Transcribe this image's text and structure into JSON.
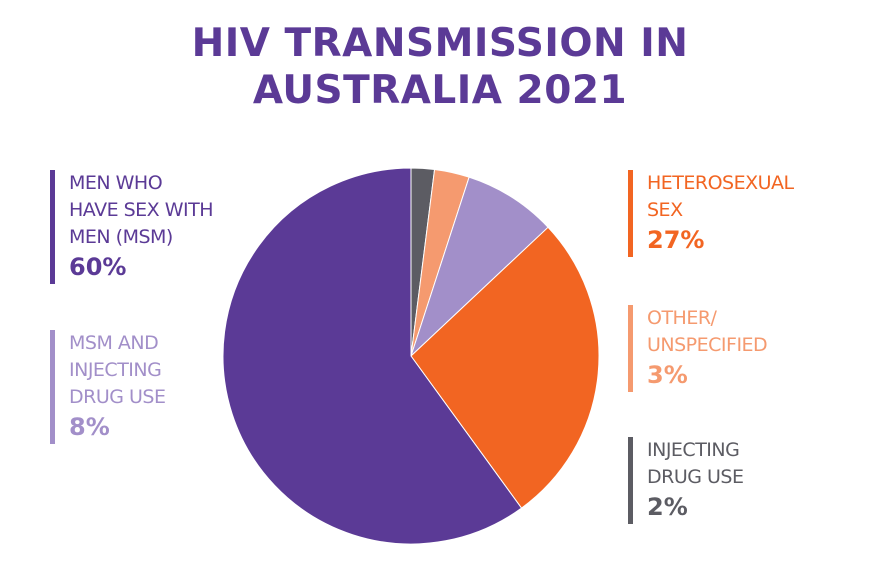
{
  "chart_data": {
    "type": "pie",
    "title_lines": [
      "HIV TRANSMISSION IN",
      "AUSTRALIA 2021"
    ],
    "slices": [
      {
        "label_lines": [
          "INJECTING",
          "DRUG USE"
        ],
        "value": 2,
        "value_label": "2%",
        "color": "#5c5c63"
      },
      {
        "label_lines": [
          "OTHER/",
          "UNSPECIFIED"
        ],
        "value": 3,
        "value_label": "3%",
        "color": "#f59a6f"
      },
      {
        "label_lines": [
          "MSM AND",
          "INJECTING",
          "DRUG USE"
        ],
        "value": 8,
        "value_label": "8%",
        "color": "#a28fc9"
      },
      {
        "label_lines": [
          "HETEROSEXUAL",
          "SEX"
        ],
        "value": 27,
        "value_label": "27%",
        "color": "#f26522"
      },
      {
        "label_lines": [
          "MEN WHO",
          "HAVE SEX WITH",
          "MEN (MSM)"
        ],
        "value": 60,
        "value_label": "60%",
        "color": "#5b3a96"
      }
    ],
    "legend_placement": "split left and right of the pie"
  },
  "colors": {
    "title": "#5b3a96",
    "background": "#ffffff"
  }
}
